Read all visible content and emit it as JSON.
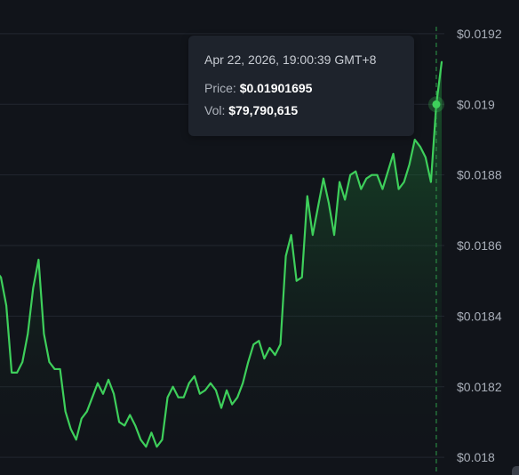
{
  "tooltip": {
    "time": "Apr 22, 2026, 19:00:39 GMT+8",
    "price_label": "Price:",
    "price_value": "$0.01901695",
    "vol_label": "Vol:",
    "vol_value": "$79,790,615"
  },
  "colors": {
    "background": "#11141a",
    "line": "#3ecf5b",
    "grid": "#232730",
    "crosshair": "#2e9e49"
  },
  "chart_data": {
    "type": "area",
    "title": "",
    "xlabel": "",
    "ylabel": "",
    "ylim": [
      0.01795,
      0.01922
    ],
    "y_ticks": [
      "$0.0192",
      "$0.019",
      "$0.0188",
      "$0.0186",
      "$0.0184",
      "$0.0182",
      "$0.018"
    ],
    "y_tick_values": [
      0.0192,
      0.019,
      0.0188,
      0.0186,
      0.0184,
      0.0182,
      0.018
    ],
    "grid": true,
    "highlighted_index": 82,
    "series": [
      {
        "values": [
          0.01853,
          0.01851,
          0.01843,
          0.01824,
          0.01824,
          0.01827,
          0.01835,
          0.01848,
          0.01856,
          0.01835,
          0.01827,
          0.01825,
          0.01825,
          0.01813,
          0.01808,
          0.01805,
          0.01811,
          0.01813,
          0.01817,
          0.01821,
          0.01818,
          0.01822,
          0.01818,
          0.0181,
          0.01809,
          0.01812,
          0.01809,
          0.01805,
          0.01803,
          0.01807,
          0.01803,
          0.01805,
          0.01817,
          0.0182,
          0.01817,
          0.01817,
          0.01821,
          0.01823,
          0.01818,
          0.01819,
          0.01821,
          0.01819,
          0.01814,
          0.01819,
          0.01815,
          0.01817,
          0.01821,
          0.01827,
          0.01832,
          0.01833,
          0.01828,
          0.01831,
          0.01829,
          0.01832,
          0.01857,
          0.01863,
          0.0185,
          0.01851,
          0.01874,
          0.01863,
          0.01871,
          0.01879,
          0.01872,
          0.01863,
          0.01878,
          0.01873,
          0.0188,
          0.01881,
          0.01876,
          0.01879,
          0.0188,
          0.0188,
          0.01876,
          0.01881,
          0.01886,
          0.01876,
          0.01878,
          0.01883,
          0.0189,
          0.01888,
          0.01885,
          0.01878,
          0.019,
          0.01912
        ]
      }
    ]
  }
}
